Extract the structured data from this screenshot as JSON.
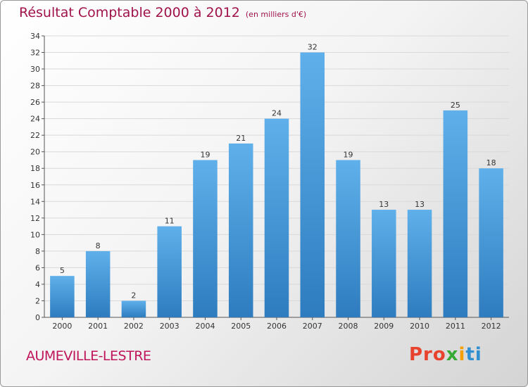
{
  "header": {
    "title": "Résultat Comptable 2000 à 2012",
    "subtitle": "(en milliers d'€)"
  },
  "footer": {
    "commune": "AUMEVILLE-LESTRE",
    "brand_parts": [
      "Pro",
      "x",
      "i",
      "ti"
    ]
  },
  "colors": {
    "bar_top": "#5fb0ea",
    "bar_bottom": "#2e7cbf",
    "title": "#a0134a",
    "grid": "#d9d9d9"
  },
  "chart_data": {
    "type": "bar",
    "title": "Résultat Comptable 2000 à 2012",
    "subtitle": "(en milliers d'€)",
    "xlabel": "",
    "ylabel": "",
    "categories": [
      "2000",
      "2001",
      "2002",
      "2003",
      "2004",
      "2005",
      "2006",
      "2007",
      "2008",
      "2009",
      "2010",
      "2011",
      "2012"
    ],
    "values": [
      5,
      8,
      2,
      11,
      19,
      21,
      24,
      32,
      19,
      13,
      13,
      25,
      18
    ],
    "ylim": [
      0,
      34
    ],
    "ytick_step": 2,
    "grid": true
  }
}
